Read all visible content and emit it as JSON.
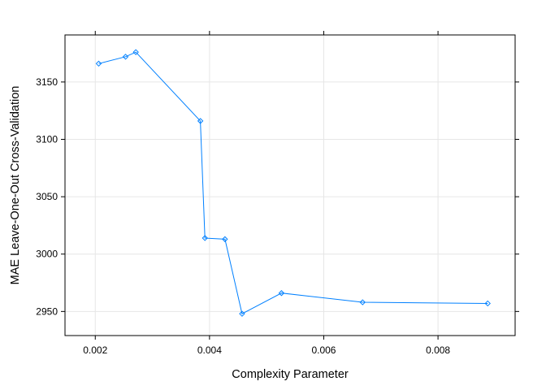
{
  "chart_data": {
    "type": "line",
    "title": "",
    "xlabel": "Complexity Parameter",
    "ylabel": "MAE Leave-One-Out Cross-Validation",
    "xlim": [
      0.00147,
      0.00935
    ],
    "ylim": [
      2929,
      3191
    ],
    "x_ticks": [
      0.002,
      0.004,
      0.006,
      0.008
    ],
    "x_tick_labels": [
      "0.002",
      "0.004",
      "0.006",
      "0.008"
    ],
    "y_ticks": [
      2950,
      3000,
      3050,
      3100,
      3150
    ],
    "y_tick_labels": [
      "2950",
      "3000",
      "3050",
      "3100",
      "3150"
    ],
    "grid": true,
    "series": [
      {
        "color": "#0080ff",
        "marker": "diamond",
        "x": [
          0.00206,
          0.00253,
          0.00271,
          0.00384,
          0.00392,
          0.00427,
          0.00457,
          0.00526,
          0.00668,
          0.00887
        ],
        "y": [
          3166,
          3172,
          3176,
          3116,
          3014,
          3013,
          2948,
          2966,
          2958,
          2957
        ]
      }
    ]
  }
}
